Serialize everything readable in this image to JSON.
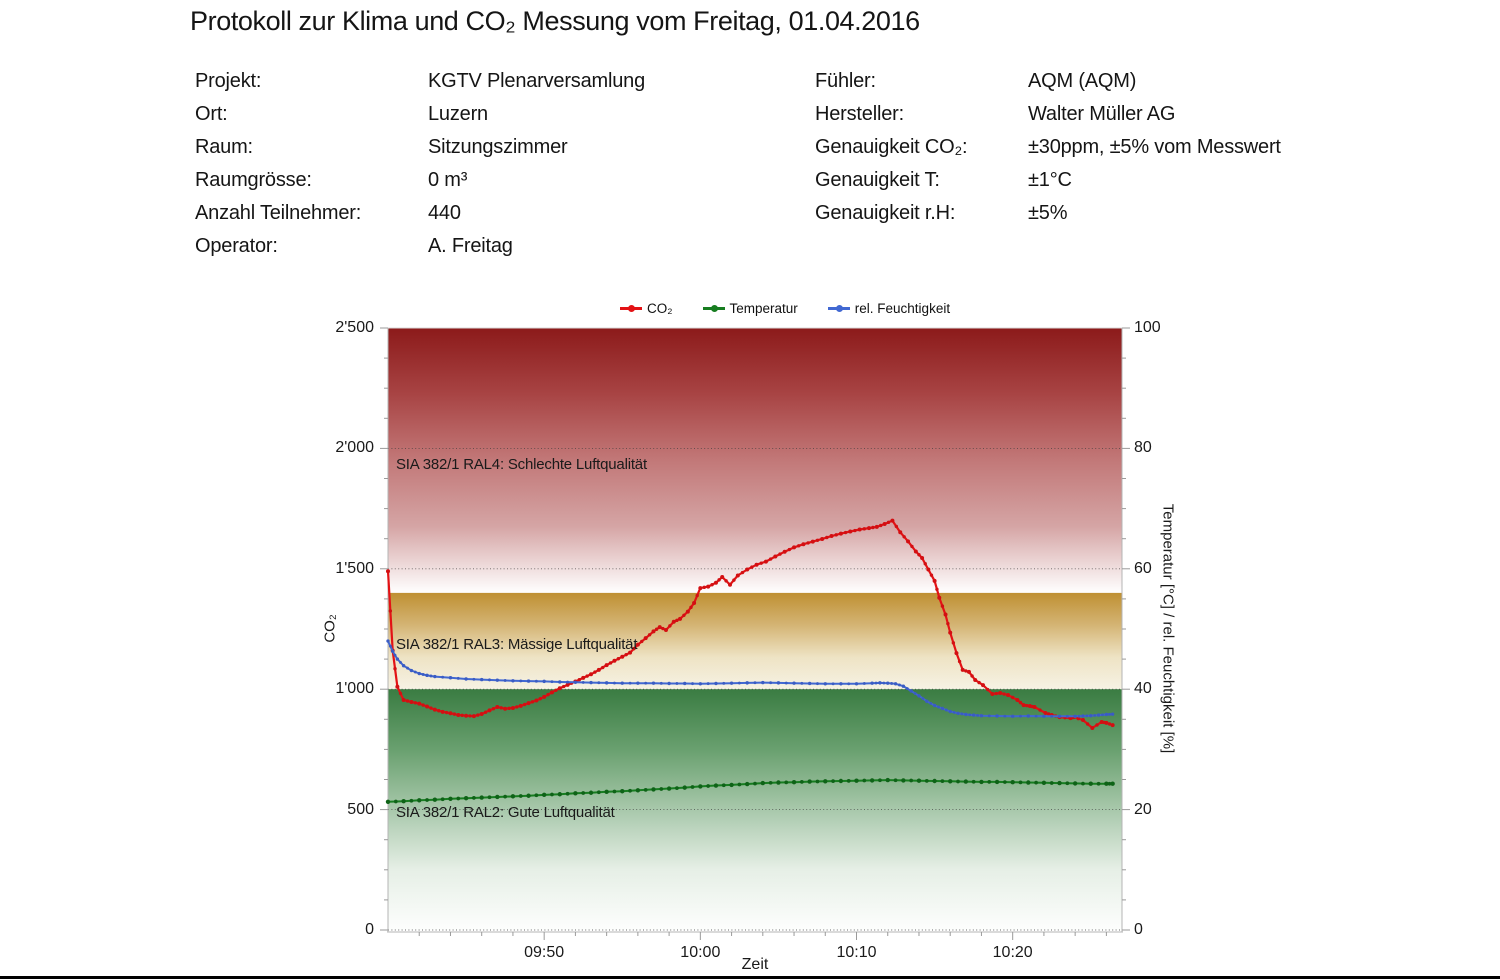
{
  "page": {
    "title": "Protokoll zur Klima und CO₂ Messung vom Freitag, 01.04.2016"
  },
  "metadata": {
    "left": [
      {
        "label": "Projekt:",
        "value": "KGTV Plenarversamlung"
      },
      {
        "label": "Ort:",
        "value": "Luzern"
      },
      {
        "label": "Raum:",
        "value": "Sitzungszimmer"
      },
      {
        "label": "Raumgrösse:",
        "value": "0 m³"
      },
      {
        "label": "Anzahl Teilnehmer:",
        "value": "440"
      },
      {
        "label": "Operator:",
        "value": "A. Freitag"
      }
    ],
    "right": [
      {
        "label": "Fühler:",
        "value": "AQM (AQM)"
      },
      {
        "label": "Hersteller:",
        "value": "Walter Müller AG"
      },
      {
        "label": "Genauigkeit CO₂:",
        "value": "±30ppm, ±5% vom Messwert"
      },
      {
        "label": "Genauigkeit T:",
        "value": "±1°C"
      },
      {
        "label": "Genauigkeit r.H:",
        "value": "±5%"
      }
    ]
  },
  "chart_data": {
    "type": "line",
    "title": "",
    "xlabel": "Zeit",
    "x_min": 0,
    "x_max": 47,
    "axes": {
      "left": {
        "title": "CO₂",
        "max": 2500,
        "minor_step": 125,
        "ticks": [
          {
            "v": 0,
            "label": "0"
          },
          {
            "v": 500,
            "label": "500"
          },
          {
            "v": 1000,
            "label": "1'000"
          },
          {
            "v": 1500,
            "label": "1'500"
          },
          {
            "v": 2000,
            "label": "2'000"
          },
          {
            "v": 2500,
            "label": "2'500"
          }
        ]
      },
      "right": {
        "title": "Temperatur [°C] / rel. Feuchtigkeit [%]",
        "max": 100,
        "minor_step": 5,
        "ticks": [
          {
            "v": 0,
            "label": "0"
          },
          {
            "v": 20,
            "label": "20"
          },
          {
            "v": 40,
            "label": "40"
          },
          {
            "v": 60,
            "label": "60"
          },
          {
            "v": 80,
            "label": "80"
          },
          {
            "v": 100,
            "label": "100"
          }
        ]
      },
      "x": {
        "minor_step": 2,
        "ticks": [
          {
            "t": 10,
            "label": "09:50"
          },
          {
            "t": 20,
            "label": "10:00"
          },
          {
            "t": 30,
            "label": "10:10"
          },
          {
            "t": 40,
            "label": "10:20"
          }
        ]
      }
    },
    "gridline_values": [
      0,
      500,
      1000,
      1500,
      2000,
      2500
    ],
    "zones": [
      {
        "name": "ral4",
        "label": "SIA 382/1 RAL4: Schlechte Luftqualität",
        "from": 1400,
        "to": 2500,
        "stops": [
          "#8c1a1a",
          "#a84444",
          "#c27878",
          "#d5a5a5",
          "#ffffff"
        ]
      },
      {
        "name": "ral3",
        "label": "SIA 382/1 RAL3: Mässige Luftqualität",
        "from": 1000,
        "to": 1400,
        "stops": [
          "#bf9033",
          "#d4b474",
          "#eee3c4",
          "#f6f2e4"
        ]
      },
      {
        "name": "ral2",
        "label": "SIA 382/1 RAL2: Gute Luftqualität",
        "from": 0,
        "to": 1000,
        "stops": [
          "#3a7c42",
          "#69a06f",
          "#a8c8ab",
          "#e6efe6",
          "#fdfefd"
        ]
      }
    ],
    "zone_label_values": [
      1930,
      1185,
      485
    ],
    "series": [
      {
        "name": "CO₂",
        "axis": "left",
        "color": "#e31215",
        "marker_color": "#d30f12",
        "width": 2.2,
        "marker_r": 2,
        "points": [
          [
            0,
            1490
          ],
          [
            0.3,
            1160
          ],
          [
            0.6,
            1010
          ],
          [
            1,
            955
          ],
          [
            1.5,
            947
          ],
          [
            2,
            940
          ],
          [
            2.5,
            928
          ],
          [
            3,
            915
          ],
          [
            3.5,
            906
          ],
          [
            4,
            900
          ],
          [
            4.5,
            893
          ],
          [
            5,
            890
          ],
          [
            5.5,
            888
          ],
          [
            6,
            897
          ],
          [
            6.5,
            912
          ],
          [
            7,
            926
          ],
          [
            7.5,
            919
          ],
          [
            8,
            922
          ],
          [
            8.5,
            931
          ],
          [
            9,
            942
          ],
          [
            9.5,
            953
          ],
          [
            10,
            968
          ],
          [
            10.5,
            987
          ],
          [
            11,
            1004
          ],
          [
            11.5,
            1018
          ],
          [
            12,
            1032
          ],
          [
            12.5,
            1047
          ],
          [
            13,
            1062
          ],
          [
            13.5,
            1080
          ],
          [
            14,
            1100
          ],
          [
            14.5,
            1118
          ],
          [
            15,
            1135
          ],
          [
            15.5,
            1152
          ],
          [
            16,
            1185
          ],
          [
            16.5,
            1212
          ],
          [
            17,
            1240
          ],
          [
            17.4,
            1258
          ],
          [
            17.8,
            1246
          ],
          [
            18.3,
            1280
          ],
          [
            18.7,
            1292
          ],
          [
            19.2,
            1322
          ],
          [
            19.6,
            1358
          ],
          [
            20,
            1420
          ],
          [
            20.5,
            1426
          ],
          [
            21,
            1442
          ],
          [
            21.4,
            1466
          ],
          [
            21.9,
            1434
          ],
          [
            22.4,
            1472
          ],
          [
            23,
            1497
          ],
          [
            23.6,
            1517
          ],
          [
            24.2,
            1530
          ],
          [
            24.8,
            1551
          ],
          [
            25.4,
            1571
          ],
          [
            26,
            1589
          ],
          [
            26.6,
            1602
          ],
          [
            27.2,
            1613
          ],
          [
            27.8,
            1624
          ],
          [
            28.4,
            1636
          ],
          [
            29,
            1646
          ],
          [
            29.6,
            1655
          ],
          [
            30.2,
            1663
          ],
          [
            30.8,
            1669
          ],
          [
            31.3,
            1674
          ],
          [
            31.8,
            1686
          ],
          [
            32.3,
            1700
          ],
          [
            32.8,
            1652
          ],
          [
            33.3,
            1614
          ],
          [
            33.8,
            1572
          ],
          [
            34.2,
            1545
          ],
          [
            34.6,
            1497
          ],
          [
            35,
            1450
          ],
          [
            35.3,
            1380
          ],
          [
            35.7,
            1310
          ],
          [
            36,
            1235
          ],
          [
            36.4,
            1150
          ],
          [
            36.8,
            1080
          ],
          [
            37.2,
            1072
          ],
          [
            37.6,
            1038
          ],
          [
            38.1,
            1017
          ],
          [
            38.7,
            980
          ],
          [
            39.2,
            984
          ],
          [
            39.7,
            976
          ],
          [
            40.3,
            955
          ],
          [
            40.7,
            934
          ],
          [
            41.1,
            930
          ],
          [
            41.4,
            926
          ],
          [
            42.1,
            901
          ],
          [
            42.5,
            893
          ],
          [
            43,
            884
          ],
          [
            43.7,
            880
          ],
          [
            43.9,
            884
          ],
          [
            44.5,
            872
          ],
          [
            45.1,
            839
          ],
          [
            45.7,
            864
          ],
          [
            46,
            860
          ],
          [
            46.4,
            851
          ]
        ]
      },
      {
        "name": "Temperatur",
        "axis": "right",
        "color": "#177d20",
        "marker_color": "#0e6317",
        "width": 2,
        "marker_r": 2.2,
        "points": [
          [
            0,
            21.3
          ],
          [
            1,
            21.4
          ],
          [
            2,
            21.55
          ],
          [
            3,
            21.65
          ],
          [
            4,
            21.8
          ],
          [
            5,
            21.9
          ],
          [
            6,
            22
          ],
          [
            7,
            22.1
          ],
          [
            8,
            22.2
          ],
          [
            9,
            22.3
          ],
          [
            10,
            22.45
          ],
          [
            11,
            22.55
          ],
          [
            12,
            22.7
          ],
          [
            13,
            22.8
          ],
          [
            14,
            22.95
          ],
          [
            15,
            23.05
          ],
          [
            16,
            23.2
          ],
          [
            17,
            23.35
          ],
          [
            18,
            23.5
          ],
          [
            19,
            23.65
          ],
          [
            20,
            23.85
          ],
          [
            21,
            24
          ],
          [
            22,
            24.1
          ],
          [
            23,
            24.25
          ],
          [
            24,
            24.4
          ],
          [
            25,
            24.5
          ],
          [
            26,
            24.55
          ],
          [
            27,
            24.65
          ],
          [
            28,
            24.7
          ],
          [
            29,
            24.75
          ],
          [
            30,
            24.8
          ],
          [
            31,
            24.85
          ],
          [
            32,
            24.9
          ],
          [
            33,
            24.85
          ],
          [
            34,
            24.8
          ],
          [
            35,
            24.75
          ],
          [
            36,
            24.7
          ],
          [
            37,
            24.65
          ],
          [
            38,
            24.6
          ],
          [
            39,
            24.6
          ],
          [
            40,
            24.55
          ],
          [
            41,
            24.5
          ],
          [
            42,
            24.45
          ],
          [
            43,
            24.4
          ],
          [
            44,
            24.35
          ],
          [
            45,
            24.3
          ],
          [
            46,
            24.3
          ],
          [
            46.4,
            24.3
          ]
        ]
      },
      {
        "name": "rel. Feuchtigkeit",
        "axis": "right",
        "color": "#4168d2",
        "marker_color": "#3a5cc4",
        "width": 2,
        "marker_r": 1.7,
        "points": [
          [
            0,
            48
          ],
          [
            0.3,
            46.3
          ],
          [
            0.6,
            45
          ],
          [
            1,
            43.9
          ],
          [
            1.5,
            43.1
          ],
          [
            2,
            42.6
          ],
          [
            2.5,
            42.3
          ],
          [
            3,
            42.1
          ],
          [
            4,
            41.9
          ],
          [
            5,
            41.7
          ],
          [
            6,
            41.6
          ],
          [
            7,
            41.5
          ],
          [
            8,
            41.4
          ],
          [
            9,
            41.35
          ],
          [
            10,
            41.3
          ],
          [
            11,
            41.2
          ],
          [
            12,
            41.15
          ],
          [
            13,
            41.1
          ],
          [
            14,
            41.05
          ],
          [
            15,
            41
          ],
          [
            16,
            41
          ],
          [
            17,
            41
          ],
          [
            18,
            40.95
          ],
          [
            19,
            40.95
          ],
          [
            20,
            40.9
          ],
          [
            21,
            40.95
          ],
          [
            22,
            41
          ],
          [
            23,
            41.05
          ],
          [
            24,
            41.1
          ],
          [
            25,
            41.05
          ],
          [
            26,
            41
          ],
          [
            27,
            40.95
          ],
          [
            28,
            40.9
          ],
          [
            29,
            40.9
          ],
          [
            30,
            40.9
          ],
          [
            31,
            41
          ],
          [
            31.5,
            41.05
          ],
          [
            32,
            41
          ],
          [
            32.5,
            40.9
          ],
          [
            33,
            40.5
          ],
          [
            33.5,
            39.7
          ],
          [
            34,
            38.9
          ],
          [
            34.5,
            38
          ],
          [
            35,
            37.3
          ],
          [
            35.5,
            36.8
          ],
          [
            36,
            36.3
          ],
          [
            36.5,
            36
          ],
          [
            37,
            35.8
          ],
          [
            37.5,
            35.7
          ],
          [
            38,
            35.6
          ],
          [
            39,
            35.55
          ],
          [
            40,
            35.5
          ],
          [
            41,
            35.55
          ],
          [
            42,
            35.5
          ],
          [
            43,
            35.5
          ],
          [
            44,
            35.5
          ],
          [
            44.5,
            35.55
          ],
          [
            45,
            35.6
          ],
          [
            45.5,
            35.7
          ],
          [
            46,
            35.8
          ],
          [
            46.4,
            35.85
          ]
        ]
      }
    ],
    "legend": [
      "CO₂",
      "Temperatur",
      "rel. Feuchtigkeit"
    ]
  }
}
